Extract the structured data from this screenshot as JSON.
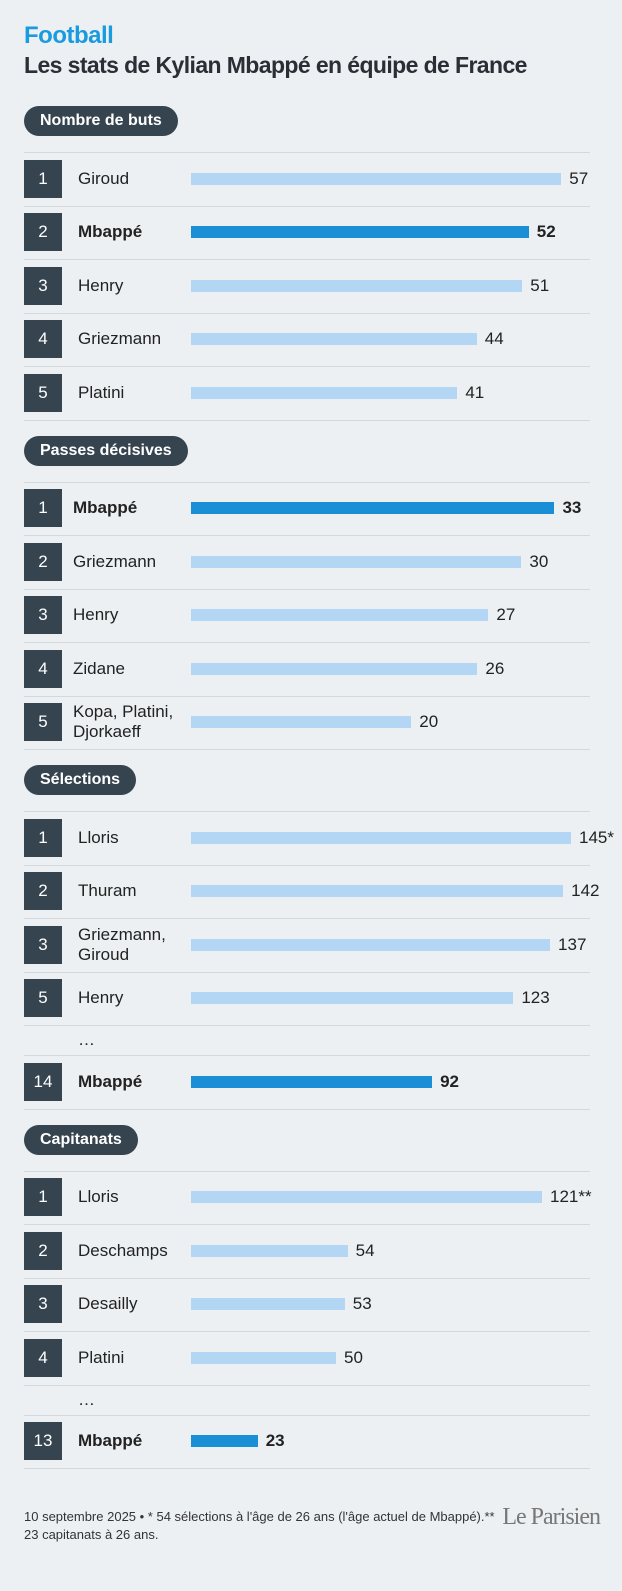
{
  "header": {
    "title": "Football",
    "subtitle": "Les stats de Kylian Mbappé en équipe de France"
  },
  "chart_data": [
    {
      "type": "bar",
      "title": "Nombre de buts",
      "ranks": [
        1,
        2,
        3,
        4,
        5
      ],
      "categories": [
        "Giroud",
        "Mbappé",
        "Henry",
        "Griezmann",
        "Platini"
      ],
      "values": [
        57,
        52,
        51,
        44,
        41
      ],
      "emphasis": [
        false,
        true,
        false,
        false,
        false
      ],
      "colors": [
        "#b3d6f4",
        "#1a8fd6",
        "#b3d6f4",
        "#b3d6f4",
        "#b3d6f4"
      ],
      "xlim": [
        0,
        58.5
      ]
    },
    {
      "type": "bar",
      "title": "Passes décisives",
      "ranks": [
        1,
        2,
        3,
        4,
        5
      ],
      "categories": [
        "Mbappé",
        "Griezmann",
        "Henry",
        "Zidane",
        "Kopa, Platini,\nDjorkaeff"
      ],
      "values": [
        33,
        30,
        27,
        26,
        20
      ],
      "emphasis": [
        true,
        false,
        false,
        false,
        false
      ],
      "colors": [
        "#1a8fd6",
        "#b3d6f4",
        "#b3d6f4",
        "#b3d6f4",
        "#b3d6f4"
      ],
      "xlim": [
        0,
        34.5
      ]
    },
    {
      "type": "bar",
      "title": "Sélections",
      "ranks": [
        1,
        2,
        3,
        5,
        null,
        14
      ],
      "categories": [
        "Lloris",
        "Thuram",
        "Griezmann,\nGiroud",
        "Henry",
        "…",
        "Mbappé"
      ],
      "values": [
        145,
        142,
        137,
        123,
        null,
        92
      ],
      "value_labels": [
        "145*",
        null,
        null,
        null,
        null,
        null
      ],
      "emphasis": [
        false,
        false,
        false,
        false,
        false,
        true
      ],
      "colors": [
        "#b3d6f4",
        "#b3d6f4",
        "#b3d6f4",
        "#b3d6f4",
        null,
        "#1a8fd6"
      ],
      "xlim": [
        0,
        145
      ]
    },
    {
      "type": "bar",
      "title": "Capitanats",
      "ranks": [
        1,
        2,
        3,
        4,
        null,
        13
      ],
      "categories": [
        "Lloris",
        "Deschamps",
        "Desailly",
        "Platini",
        "…",
        "Mbappé"
      ],
      "values": [
        121,
        54,
        53,
        50,
        null,
        23
      ],
      "value_labels": [
        "121**",
        null,
        null,
        null,
        null,
        null
      ],
      "emphasis": [
        false,
        false,
        false,
        false,
        false,
        true
      ],
      "colors": [
        "#b3d6f4",
        "#b3d6f4",
        "#b3d6f4",
        "#b3d6f4",
        null,
        "#1a8fd6"
      ],
      "xlim": [
        0,
        131
      ]
    }
  ],
  "footer": {
    "note": "10 septembre 2025 • * 54 sélections à l'âge de 26 ans (l'âge actuel de Mbappé).** 23 capitanats à 26 ans.",
    "logo": "Le Parisien"
  }
}
